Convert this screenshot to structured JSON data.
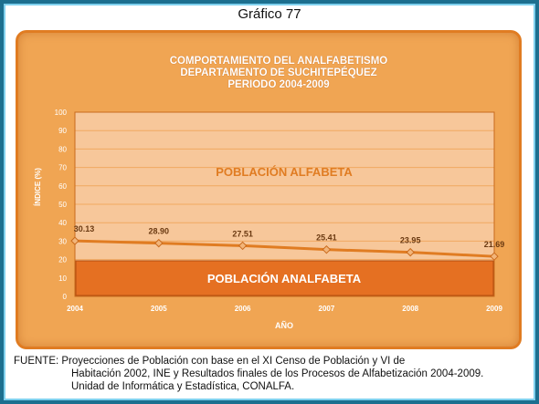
{
  "header": {
    "label": "Gráfico 77"
  },
  "chart_data": {
    "type": "line",
    "title": [
      "COMPORTAMIENTO DEL ANALFABETISMO",
      "DEPARTAMENTO DE SUCHITEPÉQUEZ",
      "PERIODO 2004-2009"
    ],
    "xlabel": "AÑO",
    "ylabel": "ÍNDICE (%)",
    "categories": [
      "2004",
      "2005",
      "2006",
      "2007",
      "2008",
      "2009"
    ],
    "values": [
      30.13,
      28.9,
      27.51,
      25.41,
      23.95,
      21.69
    ],
    "ylim": [
      0,
      100
    ],
    "yticks": [
      "0",
      "10",
      "20",
      "30",
      "40",
      "50",
      "60",
      "70",
      "80",
      "90",
      "100"
    ],
    "grid": true,
    "annotations": {
      "upper": "POBLACIÓN ALFABETA",
      "lower": "POBLACIÓN ANALFABETA"
    },
    "colors": {
      "line": "#e07c22",
      "upper_fill": "#f7c79a",
      "lower_box": "#e57022",
      "marker": "#f2b57a"
    }
  },
  "footer": {
    "line1": "FUENTE: Proyecciones de Población con base en el XI Censo de Población y VI de",
    "line2": "Habitación 2002, INE y Resultados finales de los Procesos de Alfabetización 2004-2009.",
    "line3": "Unidad de Informática y Estadística, CONALFA."
  }
}
